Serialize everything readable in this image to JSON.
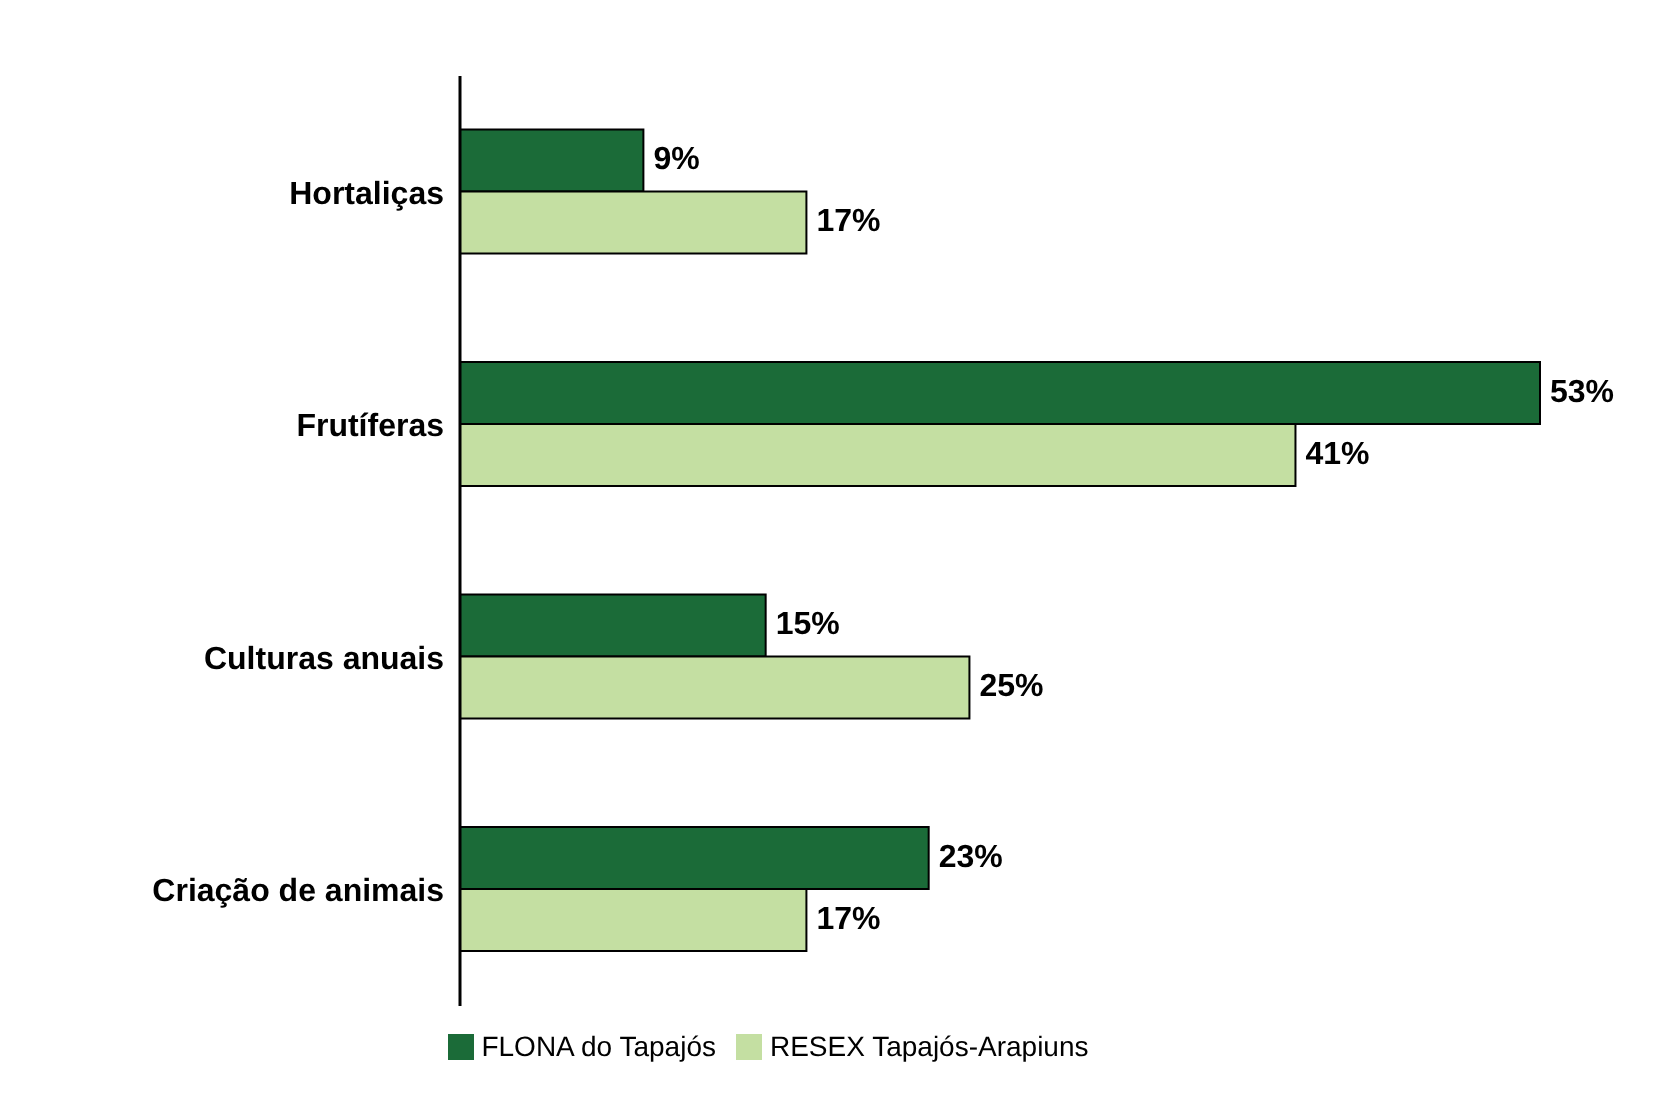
{
  "chart_data": {
    "type": "bar",
    "orientation": "horizontal",
    "categories": [
      "Hortaliças",
      "Frutíferas",
      "Culturas anuais",
      "Criação de animais"
    ],
    "series": [
      {
        "name": "FLONA do Tapajós",
        "color": "#1b6b38",
        "values": [
          9,
          53,
          15,
          23
        ],
        "value_labels": [
          "9%",
          "53%",
          "15%",
          "23%"
        ]
      },
      {
        "name": "RESEX Tapajós-Arapiuns",
        "color": "#c4dfa2",
        "values": [
          17,
          41,
          25,
          17
        ],
        "value_labels": [
          "17%",
          "41%",
          "25%",
          "17%"
        ]
      }
    ],
    "legend": "bottom"
  }
}
